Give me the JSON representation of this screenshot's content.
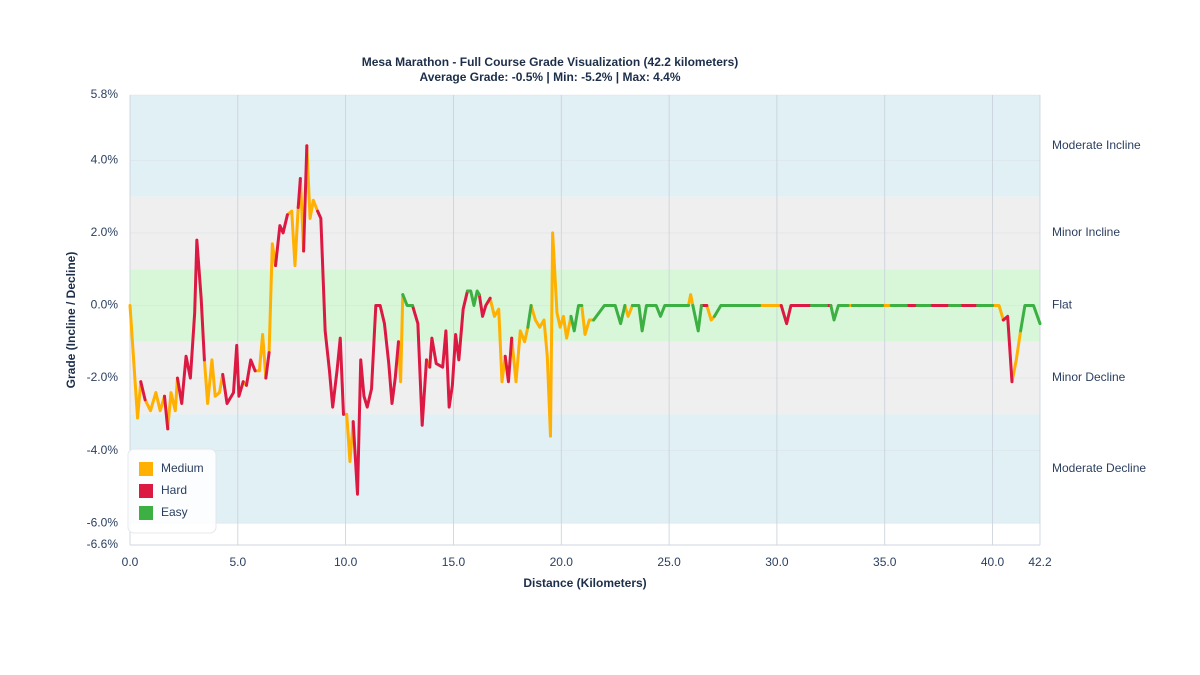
{
  "chart_data": {
    "type": "line",
    "title": "Mesa Marathon - Full Course Grade Visualization (42.2 kilometers)",
    "subtitle": "Average Grade: -0.5% | Min: -5.2% | Max: 4.4%",
    "x_label": "Distance (Kilometers)",
    "y_label": "Grade (Incline / Decline)",
    "xlim": [
      0,
      42.2
    ],
    "xticks": [
      {
        "value": 0,
        "label": "0.0"
      },
      {
        "value": 5,
        "label": "5.0"
      },
      {
        "value": 10,
        "label": "10.0"
      },
      {
        "value": 15,
        "label": "15.0"
      },
      {
        "value": 20,
        "label": "20.0"
      },
      {
        "value": 25,
        "label": "25.0"
      },
      {
        "value": 30,
        "label": "30.0"
      },
      {
        "value": 35,
        "label": "35.0"
      },
      {
        "value": 40,
        "label": "40.0"
      },
      42.2
    ],
    "ylim": [
      -6.6,
      5.8
    ],
    "yticks": [
      {
        "value": 5.8,
        "label": "5.8%"
      },
      {
        "value": 4,
        "label": "4.0%"
      },
      {
        "value": 2,
        "label": "2.0%"
      },
      {
        "value": 0,
        "label": "0.0%"
      },
      {
        "value": -2,
        "label": "-2.0%"
      },
      {
        "value": -4,
        "label": "-4.0%"
      },
      {
        "value": -6,
        "label": "-6.0%"
      },
      {
        "value": -6.6,
        "label": "-6.6%"
      }
    ],
    "grid": true,
    "legend": "lower left",
    "bands": [
      {
        "label": "Moderate Incline",
        "from": 3,
        "to": 5.8,
        "color": "#e1f0f5"
      },
      {
        "label": "Minor Incline",
        "from": 1,
        "to": 3,
        "color": "#efefef"
      },
      {
        "label": "Flat",
        "from": -1,
        "to": 1,
        "color": "#d8f7d8"
      },
      {
        "label": "Minor Decline",
        "from": -3,
        "to": -1,
        "color": "#efefef"
      },
      {
        "label": "Moderate Decline",
        "from": -6,
        "to": -3,
        "color": "#e1f0f5"
      }
    ],
    "series": [
      {
        "name": "Medium",
        "color": "#ffb000",
        "x": [
          0,
          0.35,
          0.5,
          null,
          0.7,
          0.95,
          1.2,
          1.4,
          1.6,
          null,
          1.75,
          1.9,
          2.1,
          2.2,
          null,
          3.45,
          3.6,
          3.8,
          3.95,
          4.15,
          4.3,
          null,
          5.25,
          5.4,
          null,
          5.8,
          6.0,
          6.15,
          6.3,
          null,
          6.45,
          6.6,
          6.75,
          null,
          7.3,
          7.5,
          7.65,
          7.8,
          null,
          7.9,
          8.05,
          null,
          8.2,
          8.35,
          8.5,
          8.7,
          null,
          9.9,
          10.05,
          10.2,
          10.35,
          null,
          12.45,
          12.55,
          12.65,
          null,
          13.75,
          13.9,
          null,
          16.7,
          16.9,
          17.1,
          17.25,
          17.4,
          null,
          17.7,
          17.9,
          18.1,
          18.3,
          18.45,
          null,
          18.6,
          18.8,
          19.0,
          19.2,
          19.35,
          19.5,
          19.6,
          19.8,
          19.95,
          20.1,
          20.25,
          20.45,
          null,
          20.95,
          21.1,
          21.3,
          21.5,
          null,
          22.95,
          23.1,
          23.3,
          null,
          25.9,
          26.0,
          26.1,
          null,
          26.75,
          26.95,
          27.1,
          null,
          29.2,
          30.2,
          null,
          33.3,
          33.5,
          null,
          34.9,
          35.3,
          null,
          40.0,
          40.3,
          40.5,
          null,
          40.9,
          41.1,
          41.3
        ],
        "values": [
          0,
          -3.1,
          -2.1,
          null,
          -2.6,
          -2.9,
          -2.4,
          -2.9,
          -2.5,
          null,
          -3.4,
          -2.4,
          -2.9,
          -2.0,
          null,
          -1.5,
          -2.7,
          -1.5,
          -2.5,
          -2.4,
          -1.9,
          null,
          -2.1,
          -2.2,
          null,
          -1.8,
          -1.8,
          -0.8,
          -2.0,
          null,
          -1.3,
          1.7,
          1.1,
          null,
          2.5,
          2.6,
          1.1,
          2.7,
          null,
          3.5,
          1.5,
          null,
          4.4,
          2.4,
          2.9,
          2.6,
          null,
          -3.0,
          -3.0,
          -4.3,
          -3.2,
          null,
          -1.0,
          -2.1,
          0.3,
          null,
          -1.5,
          -1.7,
          null,
          0.2,
          -0.3,
          -0.1,
          -2.1,
          -1.4,
          null,
          -0.9,
          -2.1,
          -0.7,
          -1.0,
          -0.6,
          null,
          0,
          -0.4,
          -0.6,
          -0.4,
          -1.4,
          -3.6,
          2.0,
          -0.2,
          -0.6,
          -0.3,
          -0.9,
          -0.3,
          null,
          0,
          -0.8,
          -0.4,
          -0.4,
          null,
          0,
          -0.3,
          0,
          null,
          0,
          0.3,
          0,
          null,
          0,
          -0.4,
          -0.3,
          null,
          0,
          0,
          null,
          0,
          0,
          null,
          0,
          0,
          null,
          0,
          0,
          -0.4,
          null,
          -2.1,
          -1.5,
          -0.7
        ]
      },
      {
        "name": "Hard",
        "color": "#dc1943",
        "x": [
          0.5,
          0.7,
          null,
          1.6,
          1.75,
          null,
          2.2,
          2.4,
          2.6,
          2.8,
          3.0,
          3.1,
          3.3,
          3.45,
          null,
          4.3,
          4.5,
          4.8,
          4.95,
          5.05,
          5.25,
          null,
          5.4,
          5.6,
          5.8,
          null,
          6.3,
          6.45,
          null,
          6.75,
          6.95,
          7.1,
          7.3,
          null,
          7.8,
          7.9,
          null,
          8.05,
          8.2,
          null,
          8.7,
          8.85,
          9.05,
          9.25,
          9.4,
          9.6,
          9.75,
          9.9,
          null,
          10.35,
          10.55,
          10.7,
          10.85,
          11.0,
          11.2,
          11.4,
          11.6,
          11.8,
          12.0,
          12.15,
          12.3,
          12.45,
          null,
          13.1,
          13.35,
          13.55,
          13.75,
          null,
          13.9,
          14.0,
          14.2,
          14.5,
          14.65,
          14.8,
          14.95,
          15.1,
          15.25,
          15.45,
          15.65,
          null,
          16.2,
          16.35,
          16.5,
          16.7,
          null,
          17.4,
          17.55,
          17.7,
          null,
          26.5,
          26.75,
          null,
          30.2,
          30.45,
          30.65,
          31.6,
          null,
          32.3,
          32.5,
          null,
          36.0,
          36.5,
          null,
          37.1,
          38.0,
          null,
          38.5,
          39.3,
          null,
          40.5,
          40.7,
          40.9
        ],
        "values": [
          -2.1,
          -2.6,
          null,
          -2.5,
          -3.4,
          null,
          -2.0,
          -2.7,
          -1.4,
          -2.0,
          -0.2,
          1.8,
          0.2,
          -1.5,
          null,
          -1.9,
          -2.7,
          -2.4,
          -1.1,
          -2.5,
          -2.1,
          null,
          -2.2,
          -1.5,
          -1.8,
          null,
          -2.0,
          -1.3,
          null,
          1.1,
          2.2,
          2.0,
          2.5,
          null,
          2.7,
          3.5,
          null,
          1.5,
          4.4,
          null,
          2.6,
          2.4,
          -0.7,
          -1.8,
          -2.8,
          -1.8,
          -0.9,
          -3.0,
          null,
          -3.2,
          -5.2,
          -1.5,
          -2.5,
          -2.8,
          -2.3,
          0,
          0,
          -0.5,
          -1.6,
          -2.7,
          -2.0,
          -1.0,
          null,
          0,
          -0.5,
          -3.3,
          -1.5,
          null,
          -1.7,
          -0.9,
          -1.6,
          -1.7,
          -0.7,
          -2.8,
          -2.2,
          -0.8,
          -1.5,
          -0.1,
          0.4,
          null,
          0.3,
          -0.3,
          0,
          0.2,
          null,
          -1.4,
          -2.1,
          -0.9,
          null,
          0,
          0,
          null,
          0,
          -0.5,
          0,
          0,
          null,
          0,
          0,
          null,
          0,
          0,
          null,
          0,
          0,
          null,
          0,
          0,
          null,
          -0.4,
          -0.3,
          -2.1
        ]
      },
      {
        "name": "Easy",
        "color": "#3cb043",
        "x": [
          12.65,
          12.85,
          13.1,
          null,
          15.65,
          15.8,
          15.95,
          16.1,
          16.2,
          null,
          18.45,
          18.6,
          null,
          20.45,
          20.6,
          20.8,
          20.95,
          null,
          21.5,
          22.0,
          22.5,
          22.75,
          22.95,
          null,
          23.3,
          23.6,
          23.75,
          23.95,
          24.4,
          24.6,
          24.8,
          25.9,
          null,
          26.1,
          26.35,
          26.5,
          null,
          27.1,
          27.4,
          29.2,
          null,
          31.6,
          32.3,
          null,
          32.5,
          32.65,
          32.85,
          33.3,
          null,
          33.5,
          34.9,
          null,
          35.3,
          36.0,
          null,
          36.5,
          37.1,
          null,
          38.0,
          38.5,
          null,
          39.3,
          40.0,
          null,
          41.3,
          41.5,
          41.9,
          42.2
        ],
        "values": [
          0.3,
          0,
          0,
          null,
          0.4,
          0.4,
          0,
          0.4,
          0.3,
          null,
          -0.6,
          0,
          null,
          -0.3,
          -0.7,
          0,
          0,
          null,
          -0.4,
          0,
          0,
          -0.5,
          0,
          null,
          0,
          0,
          -0.7,
          0,
          0,
          -0.3,
          0,
          0,
          null,
          0,
          -0.7,
          0,
          null,
          -0.3,
          0,
          0,
          null,
          0,
          0,
          null,
          0,
          -0.4,
          0,
          0,
          null,
          0,
          0,
          null,
          0,
          0,
          null,
          0,
          0,
          null,
          0,
          0,
          null,
          0,
          0,
          null,
          -0.7,
          0,
          0,
          -0.5
        ]
      }
    ]
  }
}
